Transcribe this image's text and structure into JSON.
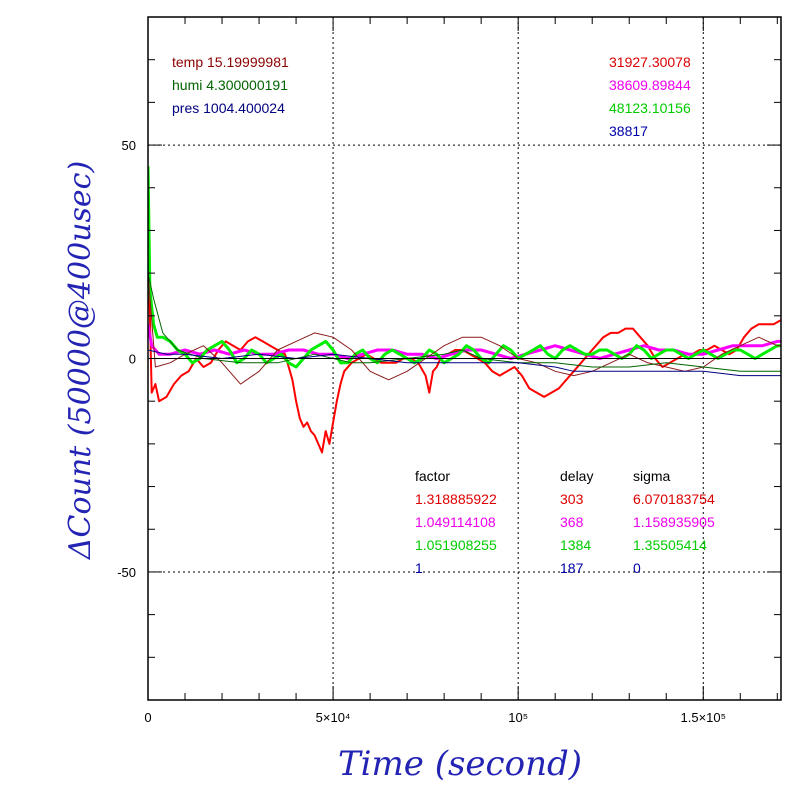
{
  "chart_data": {
    "type": "line",
    "xlabel": "Time (second)",
    "ylabel": "ΔCount (50000@400usec)",
    "xlim": [
      0,
      171000
    ],
    "ylim": [
      -80,
      80
    ],
    "grid": true,
    "x_ticks": [
      {
        "value": 0,
        "label": "0"
      },
      {
        "value": 50000,
        "label": "5×10⁴"
      },
      {
        "value": 100000,
        "label": "10⁵"
      },
      {
        "value": 150000,
        "label": "1.5×10⁵"
      }
    ],
    "y_ticks": [
      {
        "value": 50,
        "label": "50"
      },
      {
        "value": 0,
        "label": "0"
      },
      {
        "value": -50,
        "label": "-50"
      }
    ],
    "env_labels": [
      {
        "text": "temp 15.19999981",
        "color": "#8b0000"
      },
      {
        "text": "humi 4.300000191",
        "color": "#006400"
      },
      {
        "text": "pres 1004.400024",
        "color": "#000080"
      }
    ],
    "count_labels": [
      {
        "text": "31927.30078",
        "color": "#dd0000"
      },
      {
        "text": "38609.89844",
        "color": "#ee00ee"
      },
      {
        "text": "48123.10156",
        "color": "#00cc00"
      },
      {
        "text": "38817",
        "color": "#0000aa"
      }
    ],
    "fit_table": {
      "headers": [
        "factor",
        "delay",
        "sigma"
      ],
      "rows": [
        {
          "factor": "1.318885922",
          "delay": "303",
          "sigma": "6.070183754",
          "color": "#dd0000"
        },
        {
          "factor": "1.049114108",
          "delay": "368",
          "sigma": "1.158935905",
          "color": "#ee00ee"
        },
        {
          "factor": "1.051908255",
          "delay": "1384",
          "sigma": "1.35505414",
          "color": "#00cc00"
        },
        {
          "factor": "1",
          "delay": "187",
          "sigma": "0",
          "color": "#0000aa"
        }
      ]
    },
    "series": [
      {
        "color": "#ff0000",
        "width": 2,
        "x": [
          0,
          500,
          1000,
          2000,
          3000,
          5000,
          7000,
          9000,
          11000,
          13000,
          15000,
          17000,
          19000,
          21000,
          23000,
          25000,
          27000,
          29000,
          31000,
          33000,
          35000,
          37000,
          38000,
          39000,
          40000,
          41000,
          42000,
          43000,
          44000,
          45000,
          46000,
          47000,
          48000,
          49000,
          50000,
          51000,
          52000,
          53000,
          55000,
          57000,
          59000,
          61000,
          63000,
          65000,
          67000,
          69000,
          71000,
          73000,
          75000,
          76000,
          77000,
          78000,
          79000,
          81000,
          83000,
          85000,
          87000,
          89000,
          91000,
          93000,
          95000,
          97000,
          99000,
          101000,
          103000,
          105000,
          107000,
          109000,
          111000,
          113000,
          115000,
          117000,
          119000,
          121000,
          123000,
          125000,
          127000,
          129000,
          131000,
          133000,
          135000,
          137000,
          139000,
          141000,
          143000,
          145000,
          147000,
          149000,
          151000,
          153000,
          155000,
          157000,
          159000,
          161000,
          163000,
          165000,
          167000,
          169000,
          171000
        ],
        "y": [
          25,
          10,
          -8,
          -6,
          -10,
          -9,
          -6,
          -4,
          -3,
          0,
          -2,
          -1,
          2,
          4,
          3,
          2,
          4,
          5,
          4,
          3,
          2,
          1,
          -2,
          -5,
          -10,
          -14,
          -16,
          -15,
          -17,
          -18,
          -20,
          -22,
          -17,
          -20,
          -15,
          -10,
          -6,
          -3,
          -1,
          0,
          1,
          0,
          -1,
          -1,
          -1,
          0,
          0,
          -1,
          -4,
          -8,
          -3,
          -2,
          0,
          1,
          2,
          2,
          1,
          0,
          -1,
          -3,
          -4,
          -3,
          -2,
          -4,
          -7,
          -8,
          -9,
          -8,
          -7,
          -5,
          -3,
          -1,
          1,
          3,
          5,
          6,
          6,
          7,
          7,
          5,
          3,
          0,
          -2,
          -1,
          0,
          1,
          1,
          2,
          2,
          3,
          2,
          1,
          2,
          5,
          7,
          8,
          8,
          8,
          9
        ]
      },
      {
        "color": "#ff00ff",
        "width": 3,
        "x": [
          0,
          1000,
          3000,
          6000,
          10000,
          14000,
          18000,
          22000,
          26000,
          30000,
          34000,
          38000,
          42000,
          46000,
          50000,
          54000,
          58000,
          62000,
          66000,
          70000,
          74000,
          78000,
          82000,
          86000,
          90000,
          94000,
          98000,
          102000,
          106000,
          110000,
          114000,
          118000,
          122000,
          126000,
          130000,
          134000,
          138000,
          142000,
          146000,
          150000,
          154000,
          158000,
          162000,
          166000,
          170000,
          171000
        ],
        "y": [
          8,
          3,
          1,
          1,
          2,
          1,
          2,
          1,
          2,
          1,
          1,
          2,
          2,
          1,
          1,
          0,
          1,
          2,
          2,
          1,
          1,
          0,
          1,
          2,
          2,
          1,
          0,
          1,
          2,
          3,
          2,
          1,
          0,
          1,
          2,
          3,
          2,
          2,
          1,
          1,
          2,
          3,
          3,
          3,
          4,
          4
        ]
      },
      {
        "color": "#00ee00",
        "width": 3,
        "x": [
          0,
          500,
          1000,
          1500,
          2500,
          4000,
          6000,
          8000,
          10000,
          12000,
          14000,
          16000,
          18000,
          20000,
          22000,
          24000,
          26000,
          28000,
          30000,
          32000,
          34000,
          36000,
          38000,
          40000,
          42000,
          44000,
          46000,
          48000,
          50000,
          52000,
          54000,
          56000,
          58000,
          60000,
          62000,
          64000,
          66000,
          68000,
          70000,
          72000,
          74000,
          76000,
          78000,
          80000,
          82000,
          84000,
          86000,
          88000,
          90000,
          92000,
          94000,
          96000,
          98000,
          100000,
          102000,
          104000,
          106000,
          108000,
          110000,
          112000,
          114000,
          116000,
          118000,
          120000,
          122000,
          124000,
          126000,
          128000,
          130000,
          132000,
          134000,
          136000,
          138000,
          140000,
          142000,
          144000,
          146000,
          148000,
          150000,
          152000,
          154000,
          156000,
          158000,
          160000,
          162000,
          164000,
          166000,
          168000,
          170000,
          171000
        ],
        "y": [
          45,
          16,
          12,
          8,
          5,
          5,
          4,
          2,
          1,
          -1,
          0,
          2,
          3,
          4,
          2,
          -1,
          0,
          2,
          1,
          -1,
          0,
          1,
          -1,
          -2,
          0,
          2,
          3,
          4,
          2,
          -1,
          -1,
          1,
          2,
          0,
          -1,
          1,
          2,
          1,
          0,
          -1,
          0,
          2,
          1,
          -1,
          0,
          1,
          3,
          2,
          0,
          -1,
          1,
          3,
          2,
          0,
          1,
          2,
          3,
          1,
          0,
          2,
          3,
          2,
          1,
          1,
          2,
          2,
          1,
          0,
          1,
          3,
          2,
          0,
          1,
          2,
          2,
          1,
          0,
          1,
          2,
          1,
          0,
          1,
          2,
          2,
          1,
          0,
          1,
          2,
          3,
          3
        ]
      },
      {
        "color": "#8b1a1a",
        "width": 1,
        "x": [
          0,
          2000,
          6000,
          10000,
          15000,
          20000,
          25000,
          30000,
          35000,
          40000,
          45000,
          50000,
          55000,
          60000,
          65000,
          70000,
          75000,
          80000,
          85000,
          90000,
          95000,
          100000,
          105000,
          110000,
          115000,
          120000,
          125000,
          130000,
          135000,
          140000,
          145000,
          150000,
          155000,
          160000,
          165000,
          170000,
          171000
        ],
        "y": [
          20,
          -2,
          -1,
          1,
          3,
          -1,
          -6,
          -3,
          2,
          4,
          6,
          5,
          2,
          -3,
          -5,
          -3,
          0,
          3,
          5,
          5,
          3,
          0,
          -1,
          -3,
          -4,
          -3,
          -1,
          1,
          -1,
          -2,
          -3,
          -2,
          1,
          3,
          5,
          3,
          3
        ]
      },
      {
        "color": "#006400",
        "width": 1,
        "x": [
          0,
          1500,
          4000,
          8000,
          15000,
          25000,
          35000,
          45000,
          50000,
          55000,
          60000,
          70000,
          80000,
          85000,
          90000,
          100000,
          110000,
          120000,
          130000,
          140000,
          150000,
          160000,
          171000
        ],
        "y": [
          20,
          14,
          6,
          2,
          0,
          -1,
          -1,
          1,
          0,
          -1,
          -1,
          0,
          1,
          2,
          0,
          -1,
          -1,
          -2,
          -2,
          -1,
          -2,
          -3,
          -3
        ]
      },
      {
        "color": "#000080",
        "width": 1,
        "x": [
          0,
          5000,
          10000,
          20000,
          30000,
          40000,
          50000,
          60000,
          70000,
          80000,
          90000,
          100000,
          110000,
          115000,
          120000,
          130000,
          140000,
          150000,
          160000,
          171000
        ],
        "y": [
          2,
          1,
          1,
          0,
          1,
          0,
          1,
          0,
          -1,
          -1,
          -1,
          -1,
          -2,
          -3,
          -3,
          -3,
          -3,
          -3,
          -4,
          -4
        ]
      },
      {
        "color": "#000000",
        "width": 1,
        "x": [
          0,
          10000,
          20000,
          30000,
          40000,
          50000,
          60000,
          70000,
          80000,
          90000,
          100000,
          110000,
          120000,
          130000,
          140000,
          150000,
          160000,
          171000
        ],
        "y": [
          0,
          0,
          0,
          0,
          0,
          0,
          0,
          0,
          0,
          0,
          0,
          0,
          0,
          0,
          0,
          0,
          0,
          0
        ]
      }
    ]
  }
}
